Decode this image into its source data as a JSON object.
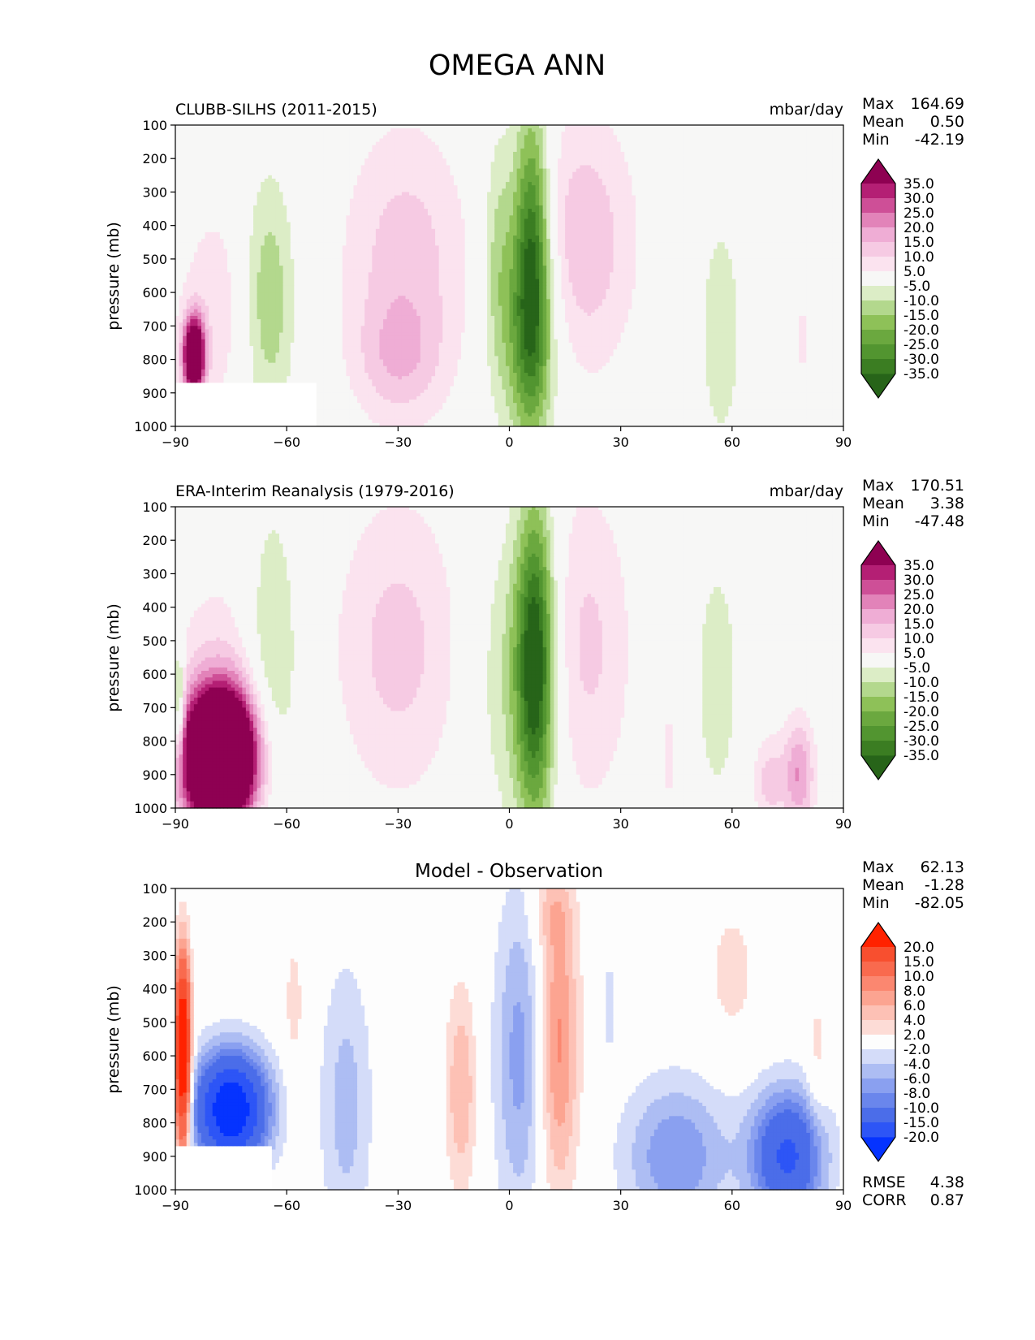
{
  "figure_title": "OMEGA ANN",
  "colors": {
    "background": "#f7f7f6",
    "diff_background": "#fdfdfd"
  },
  "chart_data": [
    {
      "type": "heatmap",
      "title": "CLUBB-SILHS (2011-2015)",
      "units": "mbar/day",
      "ylabel": "pressure (mb)",
      "xlim": [
        -90,
        90
      ],
      "ylim": [
        1000,
        100
      ],
      "x_ticks": [
        -90,
        -60,
        -30,
        0,
        30,
        60,
        90
      ],
      "y_ticks": [
        100,
        200,
        300,
        400,
        500,
        600,
        700,
        800,
        900,
        1000
      ],
      "stats": {
        "labels": [
          "Max",
          "Mean",
          "Min"
        ],
        "values": [
          "164.69",
          "0.50",
          "-42.19"
        ]
      },
      "colorbar": {
        "extend": "both",
        "labels": [
          "-35.0",
          "-30.0",
          "-25.0",
          "-20.0",
          "-15.0",
          "-10.0",
          "-5.0",
          "5.0",
          "10.0",
          "15.0",
          "20.0",
          "25.0",
          "30.0",
          "35.0"
        ],
        "colors": [
          "#276419",
          "#3b7d22",
          "#529530",
          "#6ba83f",
          "#8ec158",
          "#b3d88d",
          "#dcedc6",
          "#f7f7f6",
          "#fbe3ef",
          "#f6cae3",
          "#efadd5",
          "#e283b9",
          "#ce4f97",
          "#b41f74",
          "#8e0152"
        ]
      },
      "features": [
        {
          "x": -28,
          "p": 520,
          "v": 13,
          "wx": 12,
          "wp": 300
        },
        {
          "x": -30,
          "p": 800,
          "v": 9,
          "wx": 8,
          "wp": 120
        },
        {
          "x": 20,
          "p": 450,
          "v": 14,
          "wx": 10,
          "wp": 280
        },
        {
          "x": 6,
          "p": 500,
          "v": -36,
          "wx": 3.5,
          "wp": 320
        },
        {
          "x": 5,
          "p": 750,
          "v": -14,
          "wx": 6,
          "wp": 220
        },
        {
          "x": -3,
          "p": 480,
          "v": -12,
          "wx": 3,
          "wp": 260
        },
        {
          "x": -65,
          "p": 620,
          "v": -15,
          "wx": 5,
          "wp": 260
        },
        {
          "x": -79,
          "p": 650,
          "v": 8,
          "wx": 8,
          "wp": 250
        },
        {
          "x": -85,
          "p": 790,
          "v": 60,
          "wx": 2,
          "wp": 80
        },
        {
          "x": 57,
          "p": 720,
          "v": -9,
          "wx": 4,
          "wp": 250
        },
        {
          "x": 79,
          "p": 740,
          "v": 7,
          "wx": 1.5,
          "wp": 100
        }
      ],
      "mask": [
        {
          "x0": -90,
          "x1": -52,
          "p0": 870,
          "p1": 1000
        }
      ]
    },
    {
      "type": "heatmap",
      "title": "ERA-Interim Reanalysis (1979-2016)",
      "units": "mbar/day",
      "ylabel": "pressure (mb)",
      "xlim": [
        -90,
        90
      ],
      "ylim": [
        1000,
        100
      ],
      "x_ticks": [
        -90,
        -60,
        -30,
        0,
        30,
        60,
        90
      ],
      "y_ticks": [
        100,
        200,
        300,
        400,
        500,
        600,
        700,
        800,
        900,
        1000
      ],
      "stats": {
        "labels": [
          "Max",
          "Mean",
          "Min"
        ],
        "values": [
          "170.51",
          "3.38",
          "-47.48"
        ]
      },
      "colorbar": {
        "extend": "both",
        "labels": [
          "-35.0",
          "-30.0",
          "-25.0",
          "-20.0",
          "-15.0",
          "-10.0",
          "-5.0",
          "5.0",
          "10.0",
          "15.0",
          "20.0",
          "25.0",
          "30.0",
          "35.0"
        ],
        "colors": [
          "#276419",
          "#3b7d22",
          "#529530",
          "#6ba83f",
          "#8ec158",
          "#b3d88d",
          "#dcedc6",
          "#f7f7f6",
          "#fbe3ef",
          "#f6cae3",
          "#efadd5",
          "#e283b9",
          "#ce4f97",
          "#b41f74",
          "#8e0152"
        ]
      },
      "features": [
        {
          "x": -30,
          "p": 520,
          "v": 12,
          "wx": 12,
          "wp": 320
        },
        {
          "x": 20,
          "p": 520,
          "v": 12,
          "wx": 9,
          "wp": 340
        },
        {
          "x": 7,
          "p": 560,
          "v": -36,
          "wx": 3.5,
          "wp": 330
        },
        {
          "x": 3,
          "p": 600,
          "v": -12,
          "wx": 8,
          "wp": 320
        },
        {
          "x": -64,
          "p": 580,
          "v": -13,
          "wx": 5,
          "wp": 320
        },
        {
          "x": -78,
          "p": 850,
          "v": 90,
          "wx": 7,
          "wp": 140
        },
        {
          "x": -78,
          "p": 580,
          "v": 7,
          "wx": 10,
          "wp": 250
        },
        {
          "x": -89,
          "p": 700,
          "v": -25,
          "wx": 1,
          "wp": 120
        },
        {
          "x": 56,
          "p": 620,
          "v": -9,
          "wx": 4,
          "wp": 260
        },
        {
          "x": 78,
          "p": 900,
          "v": 20,
          "wx": 3,
          "wp": 120
        },
        {
          "x": 70,
          "p": 920,
          "v": 12,
          "wx": 3,
          "wp": 100
        },
        {
          "x": 43,
          "p": 850,
          "v": 6,
          "wx": 2,
          "wp": 150
        }
      ],
      "mask": []
    },
    {
      "type": "heatmap",
      "title": "Model - Observation",
      "units": "",
      "ylabel": "pressure (mb)",
      "xlim": [
        -90,
        90
      ],
      "ylim": [
        1000,
        100
      ],
      "x_ticks": [
        -90,
        -60,
        -30,
        0,
        30,
        60,
        90
      ],
      "y_ticks": [
        100,
        200,
        300,
        400,
        500,
        600,
        700,
        800,
        900,
        1000
      ],
      "stats": {
        "labels": [
          "Max",
          "Mean",
          "Min"
        ],
        "values": [
          "62.13",
          "-1.28",
          "-82.05"
        ]
      },
      "extra_stats": {
        "labels": [
          "RMSE",
          "CORR"
        ],
        "values": [
          "4.38",
          "0.87"
        ]
      },
      "colorbar": {
        "extend": "both",
        "labels": [
          "-20.0",
          "-15.0",
          "-10.0",
          "-8.0",
          "-6.0",
          "-4.0",
          "-2.0",
          "2.0",
          "4.0",
          "6.0",
          "8.0",
          "10.0",
          "15.0",
          "20.0"
        ],
        "colors": [
          "#0533ff",
          "#2d55f6",
          "#4b6de9",
          "#6a86ec",
          "#8aa0f0",
          "#adbdf3",
          "#d4dcf9",
          "#fdfdfd",
          "#fddcd6",
          "#fdc1b5",
          "#fca491",
          "#fb8770",
          "#f96a4e",
          "#f84f2f",
          "#ff2200"
        ]
      },
      "features": [
        {
          "x": 13,
          "p": 560,
          "v": 9,
          "wx": 4,
          "wp": 330
        },
        {
          "x": 3,
          "p": 600,
          "v": -7,
          "wx": 5,
          "wp": 350
        },
        {
          "x": -13,
          "p": 700,
          "v": 6,
          "wx": 3,
          "wp": 220
        },
        {
          "x": -44,
          "p": 750,
          "v": -5,
          "wx": 5,
          "wp": 300
        },
        {
          "x": 75,
          "p": 900,
          "v": -16,
          "wx": 7,
          "wp": 140
        },
        {
          "x": 45,
          "p": 900,
          "v": -8,
          "wx": 10,
          "wp": 160
        },
        {
          "x": -75,
          "p": 760,
          "v": -25,
          "wx": 7,
          "wp": 120
        },
        {
          "x": -88,
          "p": 600,
          "v": 30,
          "wx": 1.5,
          "wp": 200
        },
        {
          "x": 60,
          "p": 350,
          "v": 3,
          "wx": 5,
          "wp": 150
        },
        {
          "x": -58,
          "p": 450,
          "v": 3,
          "wx": 2,
          "wp": 160
        },
        {
          "x": 83,
          "p": 620,
          "v": 3,
          "wx": 2,
          "wp": 160
        },
        {
          "x": 11,
          "p": 170,
          "v": 3,
          "wx": 4,
          "wp": 80
        },
        {
          "x": 27,
          "p": 450,
          "v": -3,
          "wx": 1.5,
          "wp": 120
        }
      ],
      "mask": [
        {
          "x0": -90,
          "x1": -64,
          "p0": 870,
          "p1": 1000
        }
      ]
    }
  ]
}
